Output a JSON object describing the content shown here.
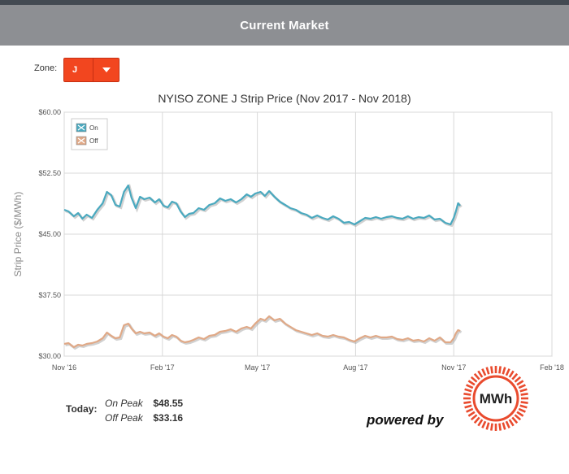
{
  "header": {
    "title": "Current Market"
  },
  "zone": {
    "label": "Zone:",
    "value": "J"
  },
  "chart_data": {
    "type": "line",
    "title": "NYISO ZONE J Strip Price (Nov 2017 - Nov 2018)",
    "ylabel": "Strip Price ($/MWh)",
    "xlabel": "",
    "ylim": [
      30,
      60
    ],
    "xlim": [
      "2016-11-01",
      "2018-02-01"
    ],
    "yticks": [
      {
        "value": 30,
        "label": "$30.00"
      },
      {
        "value": 37.5,
        "label": "$37.50"
      },
      {
        "value": 45,
        "label": "$45.00"
      },
      {
        "value": 52.5,
        "label": "$52.50"
      },
      {
        "value": 60,
        "label": "$60.00"
      }
    ],
    "xticks": [
      {
        "date": "2016-11-01",
        "label": "Nov '16"
      },
      {
        "date": "2017-02-01",
        "label": "Feb '17"
      },
      {
        "date": "2017-05-01",
        "label": "May '17"
      },
      {
        "date": "2017-08-01",
        "label": "Aug '17"
      },
      {
        "date": "2017-11-01",
        "label": "Nov '17"
      },
      {
        "date": "2018-02-01",
        "label": "Feb '18"
      }
    ],
    "grid": true,
    "legend": "top-left",
    "series": [
      {
        "name": "On",
        "color": "#4aa9bf",
        "points": [
          [
            "2016-11-01",
            48.0
          ],
          [
            "2016-11-05",
            47.8
          ],
          [
            "2016-11-10",
            47.2
          ],
          [
            "2016-11-14",
            47.6
          ],
          [
            "2016-11-18",
            46.9
          ],
          [
            "2016-11-22",
            47.4
          ],
          [
            "2016-11-27",
            47.0
          ],
          [
            "2016-12-02",
            48.0
          ],
          [
            "2016-12-07",
            48.8
          ],
          [
            "2016-12-11",
            50.2
          ],
          [
            "2016-12-15",
            49.8
          ],
          [
            "2016-12-19",
            48.6
          ],
          [
            "2016-12-23",
            48.4
          ],
          [
            "2016-12-27",
            50.2
          ],
          [
            "2016-12-31",
            51.0
          ],
          [
            "2017-01-03",
            49.5
          ],
          [
            "2017-01-07",
            48.2
          ],
          [
            "2017-01-11",
            49.6
          ],
          [
            "2017-01-15",
            49.3
          ],
          [
            "2017-01-20",
            49.5
          ],
          [
            "2017-01-25",
            48.9
          ],
          [
            "2017-01-29",
            49.3
          ],
          [
            "2017-02-02",
            48.5
          ],
          [
            "2017-02-06",
            48.3
          ],
          [
            "2017-02-10",
            49.0
          ],
          [
            "2017-02-14",
            48.8
          ],
          [
            "2017-02-18",
            47.8
          ],
          [
            "2017-02-22",
            47.1
          ],
          [
            "2017-02-26",
            47.5
          ],
          [
            "2017-03-02",
            47.6
          ],
          [
            "2017-03-07",
            48.2
          ],
          [
            "2017-03-12",
            48.0
          ],
          [
            "2017-03-17",
            48.6
          ],
          [
            "2017-03-22",
            48.8
          ],
          [
            "2017-03-27",
            49.4
          ],
          [
            "2017-04-01",
            49.1
          ],
          [
            "2017-04-06",
            49.3
          ],
          [
            "2017-04-11",
            48.9
          ],
          [
            "2017-04-16",
            49.3
          ],
          [
            "2017-04-21",
            49.9
          ],
          [
            "2017-04-25",
            49.6
          ],
          [
            "2017-04-29",
            50.0
          ],
          [
            "2017-05-04",
            50.2
          ],
          [
            "2017-05-08",
            49.7
          ],
          [
            "2017-05-12",
            50.3
          ],
          [
            "2017-05-17",
            49.6
          ],
          [
            "2017-05-22",
            49.0
          ],
          [
            "2017-05-27",
            48.6
          ],
          [
            "2017-06-01",
            48.2
          ],
          [
            "2017-06-06",
            48.0
          ],
          [
            "2017-06-11",
            47.6
          ],
          [
            "2017-06-16",
            47.4
          ],
          [
            "2017-06-21",
            47.0
          ],
          [
            "2017-06-26",
            47.3
          ],
          [
            "2017-07-01",
            47.0
          ],
          [
            "2017-07-06",
            46.8
          ],
          [
            "2017-07-11",
            47.2
          ],
          [
            "2017-07-16",
            46.9
          ],
          [
            "2017-07-21",
            46.4
          ],
          [
            "2017-07-26",
            46.5
          ],
          [
            "2017-07-31",
            46.2
          ],
          [
            "2017-08-05",
            46.6
          ],
          [
            "2017-08-10",
            47.0
          ],
          [
            "2017-08-15",
            46.9
          ],
          [
            "2017-08-20",
            47.1
          ],
          [
            "2017-08-25",
            46.9
          ],
          [
            "2017-08-30",
            47.1
          ],
          [
            "2017-09-04",
            47.2
          ],
          [
            "2017-09-09",
            47.0
          ],
          [
            "2017-09-14",
            46.9
          ],
          [
            "2017-09-19",
            47.2
          ],
          [
            "2017-09-24",
            46.9
          ],
          [
            "2017-09-29",
            47.1
          ],
          [
            "2017-10-04",
            47.0
          ],
          [
            "2017-10-09",
            47.3
          ],
          [
            "2017-10-14",
            46.8
          ],
          [
            "2017-10-19",
            46.9
          ],
          [
            "2017-10-24",
            46.4
          ],
          [
            "2017-10-29",
            46.2
          ],
          [
            "2017-11-01",
            47.0
          ],
          [
            "2017-11-03",
            47.8
          ],
          [
            "2017-11-05",
            48.8
          ],
          [
            "2017-11-07",
            48.5
          ]
        ]
      },
      {
        "name": "Off",
        "color": "#e0a987",
        "points": [
          [
            "2016-11-01",
            31.5
          ],
          [
            "2016-11-05",
            31.6
          ],
          [
            "2016-11-10",
            31.1
          ],
          [
            "2016-11-14",
            31.4
          ],
          [
            "2016-11-18",
            31.3
          ],
          [
            "2016-11-22",
            31.5
          ],
          [
            "2016-11-27",
            31.6
          ],
          [
            "2016-12-02",
            31.8
          ],
          [
            "2016-12-07",
            32.2
          ],
          [
            "2016-12-11",
            32.9
          ],
          [
            "2016-12-15",
            32.5
          ],
          [
            "2016-12-19",
            32.2
          ],
          [
            "2016-12-23",
            32.3
          ],
          [
            "2016-12-27",
            33.8
          ],
          [
            "2016-12-31",
            34.0
          ],
          [
            "2017-01-03",
            33.4
          ],
          [
            "2017-01-07",
            32.8
          ],
          [
            "2017-01-11",
            33.0
          ],
          [
            "2017-01-15",
            32.8
          ],
          [
            "2017-01-20",
            32.9
          ],
          [
            "2017-01-25",
            32.5
          ],
          [
            "2017-01-29",
            32.8
          ],
          [
            "2017-02-02",
            32.4
          ],
          [
            "2017-02-06",
            32.2
          ],
          [
            "2017-02-10",
            32.6
          ],
          [
            "2017-02-14",
            32.4
          ],
          [
            "2017-02-18",
            31.9
          ],
          [
            "2017-02-22",
            31.7
          ],
          [
            "2017-02-26",
            31.8
          ],
          [
            "2017-03-02",
            32.0
          ],
          [
            "2017-03-07",
            32.3
          ],
          [
            "2017-03-12",
            32.1
          ],
          [
            "2017-03-17",
            32.5
          ],
          [
            "2017-03-22",
            32.6
          ],
          [
            "2017-03-27",
            33.0
          ],
          [
            "2017-04-01",
            33.1
          ],
          [
            "2017-04-06",
            33.3
          ],
          [
            "2017-04-11",
            33.0
          ],
          [
            "2017-04-16",
            33.4
          ],
          [
            "2017-04-21",
            33.6
          ],
          [
            "2017-04-25",
            33.4
          ],
          [
            "2017-04-29",
            34.0
          ],
          [
            "2017-05-04",
            34.6
          ],
          [
            "2017-05-08",
            34.4
          ],
          [
            "2017-05-12",
            34.9
          ],
          [
            "2017-05-17",
            34.4
          ],
          [
            "2017-05-22",
            34.6
          ],
          [
            "2017-05-27",
            34.0
          ],
          [
            "2017-06-01",
            33.6
          ],
          [
            "2017-06-06",
            33.2
          ],
          [
            "2017-06-11",
            33.0
          ],
          [
            "2017-06-16",
            32.8
          ],
          [
            "2017-06-21",
            32.6
          ],
          [
            "2017-06-26",
            32.8
          ],
          [
            "2017-07-01",
            32.5
          ],
          [
            "2017-07-06",
            32.4
          ],
          [
            "2017-07-11",
            32.6
          ],
          [
            "2017-07-16",
            32.4
          ],
          [
            "2017-07-21",
            32.3
          ],
          [
            "2017-07-26",
            32.0
          ],
          [
            "2017-07-31",
            31.8
          ],
          [
            "2017-08-05",
            32.2
          ],
          [
            "2017-08-10",
            32.5
          ],
          [
            "2017-08-15",
            32.3
          ],
          [
            "2017-08-20",
            32.5
          ],
          [
            "2017-08-25",
            32.3
          ],
          [
            "2017-08-30",
            32.3
          ],
          [
            "2017-09-04",
            32.4
          ],
          [
            "2017-09-09",
            32.1
          ],
          [
            "2017-09-14",
            32.0
          ],
          [
            "2017-09-19",
            32.2
          ],
          [
            "2017-09-24",
            31.9
          ],
          [
            "2017-09-29",
            32.0
          ],
          [
            "2017-10-04",
            31.8
          ],
          [
            "2017-10-09",
            32.2
          ],
          [
            "2017-10-14",
            31.9
          ],
          [
            "2017-10-19",
            32.3
          ],
          [
            "2017-10-24",
            31.7
          ],
          [
            "2017-10-29",
            31.7
          ],
          [
            "2017-11-01",
            32.2
          ],
          [
            "2017-11-03",
            32.8
          ],
          [
            "2017-11-05",
            33.2
          ],
          [
            "2017-11-07",
            33.1
          ]
        ]
      }
    ]
  },
  "today": {
    "label": "Today:",
    "on_peak_label": "On Peak",
    "on_peak_value": "$48.55",
    "off_peak_label": "Off Peak",
    "off_peak_value": "$33.16"
  },
  "branding": {
    "powered_by": "powered by",
    "logo_text": "MWh",
    "logo_color": "#e94b2e"
  }
}
